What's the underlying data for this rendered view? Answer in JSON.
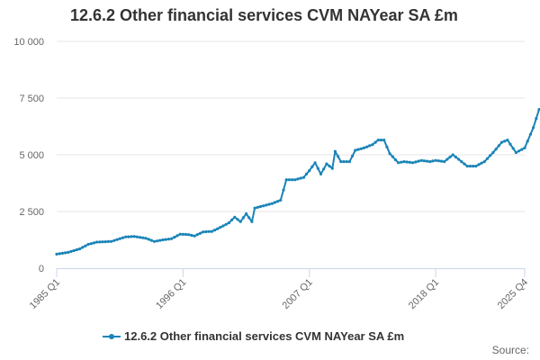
{
  "chart_data": {
    "type": "line",
    "title": "12.6.2 Other financial services CVM NAYear SA £m",
    "xlabel": "",
    "ylabel": "",
    "ylim": [
      0,
      10000
    ],
    "yticks": [
      0,
      2500,
      5000,
      7500,
      10000
    ],
    "ytick_labels": [
      "0",
      "2 500",
      "5 000",
      "7 500",
      "10 000"
    ],
    "xticks": [
      "1985 Q1",
      "1996 Q1",
      "2007 Q1",
      "2018 Q1",
      "2025 Q4"
    ],
    "grid": true,
    "legend_position": "bottom",
    "color": "#1a84b8",
    "series": [
      {
        "name": "12.6.2 Other financial services CVM NAYear SA £m",
        "x_start": "1985 Q1",
        "frequency": "quarterly",
        "anchors": [
          [
            "1985 Q1",
            620
          ],
          [
            "1986 Q1",
            700
          ],
          [
            "1987 Q1",
            850
          ],
          [
            "1987 Q4",
            1050
          ],
          [
            "1988 Q3",
            1150
          ],
          [
            "1989 Q4",
            1180
          ],
          [
            "1991 Q1",
            1380
          ],
          [
            "1991 Q4",
            1400
          ],
          [
            "1992 Q4",
            1320
          ],
          [
            "1993 Q3",
            1180
          ],
          [
            "1994 Q2",
            1250
          ],
          [
            "1995 Q1",
            1300
          ],
          [
            "1995 Q4",
            1500
          ],
          [
            "1996 Q3",
            1480
          ],
          [
            "1997 Q1",
            1420
          ],
          [
            "1997 Q4",
            1600
          ],
          [
            "1998 Q3",
            1620
          ],
          [
            "1999 Q2",
            1800
          ],
          [
            "2000 Q1",
            2000
          ],
          [
            "2000 Q3",
            2250
          ],
          [
            "2001 Q1",
            2050
          ],
          [
            "2001 Q3",
            2400
          ],
          [
            "2002 Q1",
            2050
          ],
          [
            "2002 Q2",
            2650
          ],
          [
            "2003 Q1",
            2750
          ],
          [
            "2003 Q4",
            2850
          ],
          [
            "2004 Q3",
            3000
          ],
          [
            "2005 Q1",
            3900
          ],
          [
            "2005 Q4",
            3900
          ],
          [
            "2006 Q3",
            4000
          ],
          [
            "2007 Q1",
            4300
          ],
          [
            "2007 Q3",
            4650
          ],
          [
            "2008 Q1",
            4150
          ],
          [
            "2008 Q3",
            4600
          ],
          [
            "2009 Q1",
            4400
          ],
          [
            "2009 Q2",
            5150
          ],
          [
            "2009 Q4",
            4700
          ],
          [
            "2010 Q3",
            4700
          ],
          [
            "2011 Q1",
            5200
          ],
          [
            "2011 Q4",
            5300
          ],
          [
            "2012 Q3",
            5450
          ],
          [
            "2013 Q1",
            5650
          ],
          [
            "2013 Q3",
            5650
          ],
          [
            "2014 Q1",
            5050
          ],
          [
            "2014 Q4",
            4650
          ],
          [
            "2015 Q2",
            4700
          ],
          [
            "2016 Q1",
            4650
          ],
          [
            "2016 Q4",
            4750
          ],
          [
            "2017 Q3",
            4700
          ],
          [
            "2018 Q1",
            4750
          ],
          [
            "2018 Q4",
            4700
          ],
          [
            "2019 Q3",
            5000
          ],
          [
            "2020 Q1",
            4800
          ],
          [
            "2020 Q4",
            4500
          ],
          [
            "2021 Q3",
            4500
          ],
          [
            "2022 Q2",
            4700
          ],
          [
            "2023 Q1",
            5100
          ],
          [
            "2023 Q4",
            5550
          ],
          [
            "2024 Q2",
            5650
          ],
          [
            "2025 Q1",
            5100
          ],
          [
            "2025 Q4",
            5300
          ],
          [
            "2026 Q3",
            6200
          ],
          [
            "2027 Q1",
            7000
          ],
          [
            "2027 Q4",
            7000
          ],
          [
            "2028 Q2",
            7250
          ],
          [
            "2029 Q1",
            7150
          ],
          [
            "2029 Q4",
            7550
          ],
          [
            "2030 Q3",
            7750
          ],
          [
            "2031 Q1",
            7900
          ],
          [
            "2031 Q4",
            8150
          ],
          [
            "2032 Q2",
            7750
          ],
          [
            "2032 Q4",
            7950
          ],
          [
            "2033 Q3",
            8350
          ],
          [
            "2034 Q2",
            8600
          ],
          [
            "2035 Q1",
            8650
          ],
          [
            "2035 Q3",
            9100
          ],
          [
            "2036 Q1",
            8550
          ],
          [
            "2036 Q3",
            8450
          ],
          [
            "2037 Q1",
            8150
          ],
          [
            "2037 Q3",
            8600
          ],
          [
            "2038 Q2",
            8750
          ],
          [
            "2039 Q1",
            8800
          ],
          [
            "2039 Q4",
            8900
          ],
          [
            "2040 Q3",
            9000
          ],
          [
            "2041 Q1",
            9050
          ]
        ]
      }
    ]
  },
  "legend": {
    "label": "12.6.2 Other financial services CVM NAYear SA £m"
  },
  "footer": {
    "source": "Source:"
  }
}
